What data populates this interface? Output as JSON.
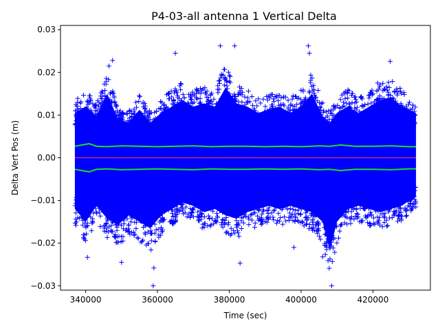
{
  "chart_data": {
    "type": "scatter",
    "title": "P4-03-all antenna 1 Vertical Delta",
    "xlabel": "Time (sec)",
    "ylabel": "Delta Vert Pos (m)",
    "xlim": [
      333000,
      436000
    ],
    "ylim": [
      -0.031,
      0.031
    ],
    "x_ticks": [
      340000,
      360000,
      380000,
      400000,
      420000
    ],
    "x_tick_labels": [
      "340000",
      "360000",
      "380000",
      "400000",
      "420000"
    ],
    "y_ticks": [
      -0.03,
      -0.02,
      -0.01,
      0.0,
      0.01,
      0.02,
      0.03
    ],
    "y_tick_labels": [
      "−0.03",
      "−0.02",
      "−0.01",
      "0.00",
      "0.01",
      "0.02",
      "0.03"
    ],
    "grid": false,
    "data_extent": {
      "x_start": 337000,
      "x_end": 432000
    },
    "series": [
      {
        "marker": "plus",
        "color": "#0000ff",
        "envelope": {
          "x": [
            337000,
            340000,
            343000,
            346000,
            349000,
            352000,
            355000,
            358000,
            361000,
            364000,
            367000,
            370000,
            373000,
            376000,
            379000,
            382000,
            385000,
            388000,
            391000,
            394000,
            397000,
            400000,
            403000,
            406000,
            408000,
            410000,
            413000,
            416000,
            419000,
            422000,
            425000,
            428000,
            432000
          ],
          "upper": [
            0.014,
            0.016,
            0.013,
            0.02,
            0.012,
            0.011,
            0.015,
            0.011,
            0.014,
            0.016,
            0.018,
            0.016,
            0.017,
            0.016,
            0.022,
            0.017,
            0.016,
            0.014,
            0.015,
            0.016,
            0.014,
            0.016,
            0.02,
            0.013,
            0.011,
            0.014,
            0.016,
            0.014,
            0.016,
            0.018,
            0.019,
            0.016,
            0.014
          ],
          "lower": [
            -0.016,
            -0.02,
            -0.015,
            -0.019,
            -0.021,
            -0.018,
            -0.02,
            -0.022,
            -0.018,
            -0.016,
            -0.014,
            -0.015,
            -0.017,
            -0.016,
            -0.018,
            -0.019,
            -0.017,
            -0.016,
            -0.015,
            -0.016,
            -0.015,
            -0.016,
            -0.017,
            -0.02,
            -0.029,
            -0.02,
            -0.016,
            -0.015,
            -0.016,
            -0.017,
            -0.016,
            -0.015,
            -0.012
          ]
        },
        "outliers": [
          [
            346500,
            0.0215
          ],
          [
            347500,
            0.0228
          ],
          [
            365000,
            0.0245
          ],
          [
            377500,
            0.0262
          ],
          [
            381500,
            0.0262
          ],
          [
            402000,
            0.0262
          ],
          [
            402300,
            0.0245
          ],
          [
            424800,
            0.0226
          ],
          [
            358800,
            -0.03
          ],
          [
            340500,
            -0.0233
          ],
          [
            350000,
            -0.0245
          ],
          [
            359000,
            -0.0258
          ],
          [
            383000,
            -0.0247
          ],
          [
            408500,
            -0.03
          ],
          [
            406000,
            -0.0232
          ],
          [
            398000,
            -0.021
          ]
        ]
      },
      {
        "name": "",
        "color": "#22dd22",
        "type": "line",
        "x": [
          337000,
          339000,
          341000,
          343000,
          346000,
          350000,
          355000,
          360000,
          365000,
          370000,
          375000,
          380000,
          385000,
          390000,
          395000,
          400000,
          405000,
          408000,
          411000,
          415000,
          420000,
          425000,
          430000,
          432000
        ],
        "values": [
          0.0027,
          0.003,
          0.0033,
          0.0027,
          0.0026,
          0.0028,
          0.0027,
          0.0026,
          0.0027,
          0.0028,
          0.0026,
          0.0027,
          0.0027,
          0.0026,
          0.0027,
          0.0026,
          0.0028,
          0.0027,
          0.003,
          0.0027,
          0.0027,
          0.0028,
          0.0026,
          0.0026
        ]
      },
      {
        "name": "",
        "color": "#22dd22",
        "type": "line",
        "x": [
          337000,
          339000,
          341000,
          343000,
          346000,
          350000,
          355000,
          360000,
          365000,
          370000,
          375000,
          380000,
          385000,
          390000,
          395000,
          400000,
          405000,
          408000,
          411000,
          415000,
          420000,
          425000,
          430000,
          432000
        ],
        "values": [
          -0.0027,
          -0.003,
          -0.0033,
          -0.0027,
          -0.0026,
          -0.0028,
          -0.0027,
          -0.0026,
          -0.0027,
          -0.0028,
          -0.0026,
          -0.0027,
          -0.0027,
          -0.0026,
          -0.0027,
          -0.0026,
          -0.0028,
          -0.0027,
          -0.003,
          -0.0027,
          -0.0027,
          -0.0028,
          -0.0026,
          -0.0026
        ]
      },
      {
        "name": "",
        "color": "#ff4040",
        "type": "line",
        "x": [
          337000,
          432000
        ],
        "values": [
          0.0,
          0.0
        ]
      }
    ]
  }
}
